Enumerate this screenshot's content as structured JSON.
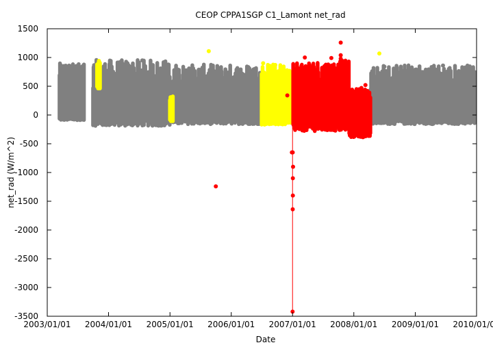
{
  "chart_data": {
    "type": "scatter",
    "title": "CEOP CPPA1SGP C1_Lamont  net_rad",
    "xlabel": "Date",
    "ylabel": "net_rad (W/m^2)",
    "ylim": [
      -3500,
      1500
    ],
    "xlim": [
      "2003/01/01",
      "2010/01/01"
    ],
    "x_ticks": [
      "2003/01/01",
      "2004/01/01",
      "2005/01/01",
      "2006/01/01",
      "2007/01/01",
      "2008/01/01",
      "2009/01/01",
      "2010/01/01"
    ],
    "y_ticks": [
      1500,
      1000,
      500,
      0,
      -500,
      -1000,
      -1500,
      -2000,
      -2500,
      -3000,
      -3500
    ],
    "grid": false,
    "legend": "none",
    "colors": {
      "gray": "#808080",
      "yellow": "#ffff00",
      "red": "#ff0000"
    },
    "series": [
      {
        "color": "gray",
        "bands": [
          {
            "x_start": "2003/03/15",
            "x_end": "2003/08/10",
            "low_min": -90,
            "low_max": -50,
            "high_min": 600,
            "high_max": 900
          },
          {
            "x_start": "2003/10/01",
            "x_end": "2004/12/31",
            "low_min": -190,
            "low_max": -60,
            "high_min": 310,
            "high_max": 960
          },
          {
            "x_start": "2005/01/20",
            "x_end": "2006/06/25",
            "low_min": -160,
            "low_max": -60,
            "high_min": 330,
            "high_max": 880
          },
          {
            "x_start": "2008/04/10",
            "x_end": "2009/12/25",
            "low_min": -160,
            "low_max": -60,
            "high_min": 300,
            "high_max": 880
          }
        ],
        "points": [
          {
            "x": "2003/03/25",
            "y": 830
          },
          {
            "x": "2004/05/15",
            "y": 830
          },
          {
            "x": "2004/07/20",
            "y": 950
          },
          {
            "x": "2005/04/25",
            "y": 810
          },
          {
            "x": "2005/11/05",
            "y": 410
          },
          {
            "x": "2006/05/20",
            "y": 800
          },
          {
            "x": "2008/07/01",
            "y": 840
          },
          {
            "x": "2009/06/15",
            "y": 860
          },
          {
            "x": "2009/10/05",
            "y": 555
          }
        ]
      },
      {
        "color": "yellow",
        "bands": [
          {
            "x_start": "2003/10/25",
            "x_end": "2003/11/12",
            "low_min": 460,
            "low_max": 500,
            "high_min": 850,
            "high_max": 930
          },
          {
            "x_start": "2005/01/01",
            "x_end": "2005/01/20",
            "low_min": -110,
            "low_max": -80,
            "high_min": 240,
            "high_max": 330
          },
          {
            "x_start": "2006/07/01",
            "x_end": "2006/12/20",
            "low_min": -170,
            "low_max": -100,
            "high_min": 560,
            "high_max": 880
          }
        ],
        "points": [
          {
            "x": "2003/11/05",
            "y": 940
          },
          {
            "x": "2005/08/20",
            "y": 1110
          },
          {
            "x": "2006/07/10",
            "y": 900
          },
          {
            "x": "2006/09/20",
            "y": 870
          },
          {
            "x": "2006/12/25",
            "y": 540
          },
          {
            "x": "2008/06/01",
            "y": 1070
          }
        ]
      },
      {
        "color": "red",
        "bands": [
          {
            "x_start": "2007/01/05",
            "x_end": "2007/12/05",
            "low_min": -280,
            "low_max": -140,
            "high_min": 410,
            "high_max": 950
          },
          {
            "x_start": "2007/12/05",
            "x_end": "2008/04/10",
            "low_min": -390,
            "low_max": -300,
            "high_min": 230,
            "high_max": 460
          }
        ],
        "points": [
          {
            "x": "2005/10/01",
            "y": -1240
          },
          {
            "x": "2006/12/01",
            "y": 340
          },
          {
            "x": "2007/01/01",
            "y": -3420
          },
          {
            "x": "2007/01/02",
            "y": -1640
          },
          {
            "x": "2007/01/03",
            "y": -1400
          },
          {
            "x": "2007/01/03",
            "y": -1100
          },
          {
            "x": "2007/01/04",
            "y": -900
          },
          {
            "x": "2007/01/02",
            "y": -650
          },
          {
            "x": "2006/12/28",
            "y": -650
          },
          {
            "x": "2007/03/15",
            "y": 1000
          },
          {
            "x": "2007/10/15",
            "y": 1260
          },
          {
            "x": "2007/10/15",
            "y": 1040
          },
          {
            "x": "2007/10/15",
            "y": 980
          },
          {
            "x": "2007/10/20",
            "y": 750
          },
          {
            "x": "2007/10/20",
            "y": 630
          },
          {
            "x": "2007/08/20",
            "y": 990
          },
          {
            "x": "2008/03/10",
            "y": 520
          },
          {
            "x": "2008/02/15",
            "y": 470
          },
          {
            "x": "2007/11/15",
            "y": 480
          }
        ]
      }
    ]
  }
}
